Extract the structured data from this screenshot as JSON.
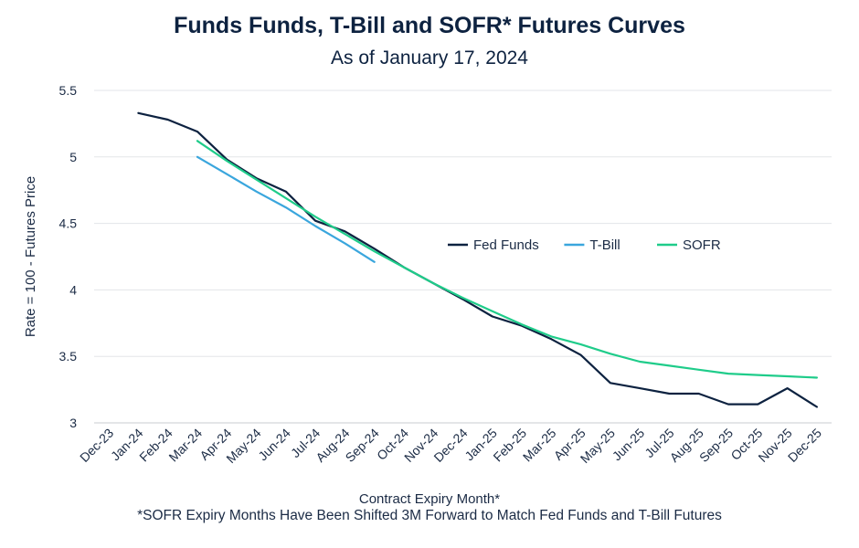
{
  "chart_data": {
    "type": "line",
    "title": "Funds Funds, T-Bill and SOFR* Futures Curves",
    "subtitle": "As of January 17, 2024",
    "xlabel": "Contract Expiry Month*",
    "ylabel": "Rate = 100 - Futures Price",
    "footnote": "*SOFR Expiry Months Have Been Shifted 3M Forward to Match Fed Funds and T-Bill Futures",
    "categories": [
      "Dec-23",
      "Jan-24",
      "Feb-24",
      "Mar-24",
      "Apr-24",
      "May-24",
      "Jun-24",
      "Jul-24",
      "Aug-24",
      "Sep-24",
      "Oct-24",
      "Nov-24",
      "Dec-24",
      "Jan-25",
      "Feb-25",
      "Mar-25",
      "Apr-25",
      "May-25",
      "Jun-25",
      "Jul-25",
      "Aug-25",
      "Sep-25",
      "Oct-25",
      "Nov-25",
      "Dec-25"
    ],
    "ylim": [
      3,
      5.5
    ],
    "yticks": [
      "3",
      "3.5",
      "4",
      "4.5",
      "5",
      "5.5"
    ],
    "grid": true,
    "legend_position": "center-right",
    "series": [
      {
        "name": "Fed Funds",
        "color": "#0d2240",
        "values": [
          null,
          5.33,
          5.28,
          5.19,
          4.98,
          4.84,
          4.74,
          4.52,
          4.44,
          4.31,
          4.17,
          4.05,
          3.93,
          3.8,
          3.73,
          3.63,
          3.51,
          3.3,
          3.26,
          3.22,
          3.22,
          3.14,
          3.14,
          3.26,
          3.12
        ]
      },
      {
        "name": "T-Bill",
        "color": "#3aa6dd",
        "values": [
          null,
          null,
          null,
          5.0,
          4.87,
          4.74,
          4.62,
          4.48,
          4.35,
          4.21,
          null,
          null,
          null,
          null,
          null,
          null,
          null,
          null,
          null,
          null,
          null,
          null,
          null,
          null,
          null
        ]
      },
      {
        "name": "SOFR",
        "color": "#1fcc8a",
        "values": [
          null,
          null,
          null,
          5.12,
          4.97,
          4.83,
          4.69,
          4.55,
          4.42,
          4.29,
          4.17,
          4.05,
          3.94,
          3.84,
          3.74,
          3.65,
          3.59,
          3.52,
          3.46,
          3.43,
          3.4,
          3.37,
          3.36,
          3.35,
          3.34
        ]
      }
    ]
  }
}
